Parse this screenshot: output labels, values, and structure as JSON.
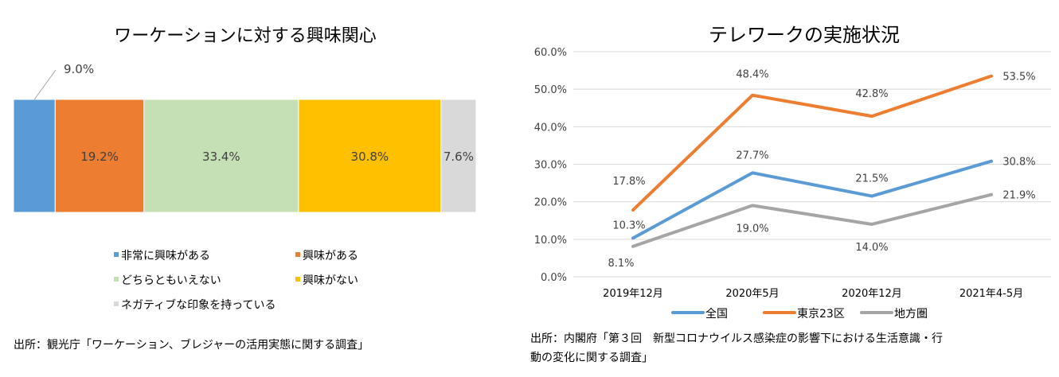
{
  "chart_data": [
    {
      "type": "bar",
      "subtype": "stacked-100-horizontal",
      "title": "ワーケーションに対する興味関心",
      "series": [
        {
          "name": "非常に興味がある",
          "value": 9.0,
          "label": "9.0%",
          "color": "#5b9bd5"
        },
        {
          "name": "興味がある",
          "value": 19.2,
          "label": "19.2%",
          "color": "#ed7d31"
        },
        {
          "name": "どちらともいえない",
          "value": 33.4,
          "label": "33.4%",
          "color": "#c5e0b4"
        },
        {
          "name": "興味がない",
          "value": 30.8,
          "label": "30.8%",
          "color": "#ffc000"
        },
        {
          "name": "ネガティブな印象を持っている",
          "value": 7.6,
          "label": "7.6%",
          "color": "#d9d9d9"
        }
      ],
      "legend_position": "bottom",
      "source": "出所：観光庁「ワーケーション、ブレジャーの活用実態に関する調査」"
    },
    {
      "type": "line",
      "title": "テレワークの実施状況",
      "categories": [
        "2019年12月",
        "2020年5月",
        "2020年12月",
        "2021年4-5月"
      ],
      "ylim": [
        0,
        60
      ],
      "yticks": [
        "0.0%",
        "10.0%",
        "20.0%",
        "30.0%",
        "40.0%",
        "50.0%",
        "60.0%"
      ],
      "grid": true,
      "series": [
        {
          "name": "全国",
          "values": [
            10.3,
            27.7,
            21.5,
            30.8
          ],
          "labels": [
            "10.3%",
            "27.7%",
            "21.5%",
            "30.8%"
          ],
          "color": "#5b9bd5"
        },
        {
          "name": "東京23区",
          "values": [
            17.8,
            48.4,
            42.8,
            53.5
          ],
          "labels": [
            "17.8%",
            "48.4%",
            "42.8%",
            "53.5%"
          ],
          "color": "#ed7d31"
        },
        {
          "name": "地方圏",
          "values": [
            8.1,
            19.0,
            14.0,
            21.9
          ],
          "labels": [
            "8.1%",
            "19.0%",
            "14.0%",
            "21.9%"
          ],
          "color": "#a5a5a5"
        }
      ],
      "legend_position": "bottom",
      "source_line1": "出所：内閣府「第３回　新型コロナウイルス感染症の影響下における生活意識・行",
      "source_line2": "動の変化に関する調査」"
    }
  ]
}
